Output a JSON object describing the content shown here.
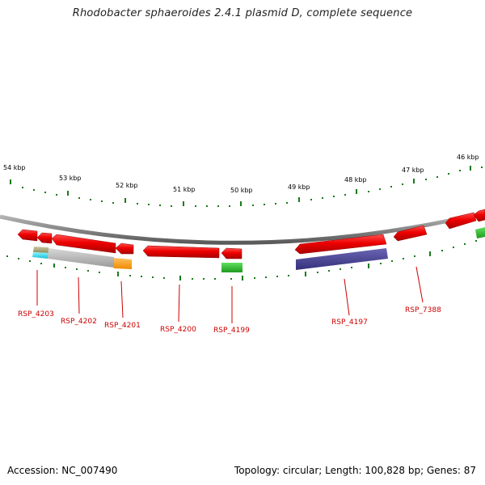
{
  "title": "Rhodobacter sphaeroides 2.4.1 plasmid D, complete sequence",
  "footer": {
    "accession": "Accession: NC_007490",
    "topology": "Topology: circular; Length: 100,828 bp; Genes: 87"
  },
  "colors": {
    "backbone": "#8c8c8c",
    "gene_red": "#ee0000",
    "tick_green": "#1a7a1a",
    "label_red": "#cc0000",
    "cog_gray": "#b4b4b4",
    "cog_orange": "#ff9f1a",
    "cog_green": "#2ec02e",
    "cog_navy": "#4b4796",
    "cog_cyan": "#33ddee",
    "cog_khaki": "#a8a878"
  },
  "kbp_labels": [
    "54 kbp",
    "53 kbp",
    "52 kbp",
    "51 kbp",
    "50 kbp",
    "49 kbp",
    "48 kbp",
    "47 kbp",
    "46 kbp"
  ],
  "gene_labels": [
    "RSP_4203",
    "RSP_4202",
    "RSP_4201",
    "RSP_4200",
    "RSP_4199",
    "RSP_4197",
    "RSP_7388"
  ]
}
